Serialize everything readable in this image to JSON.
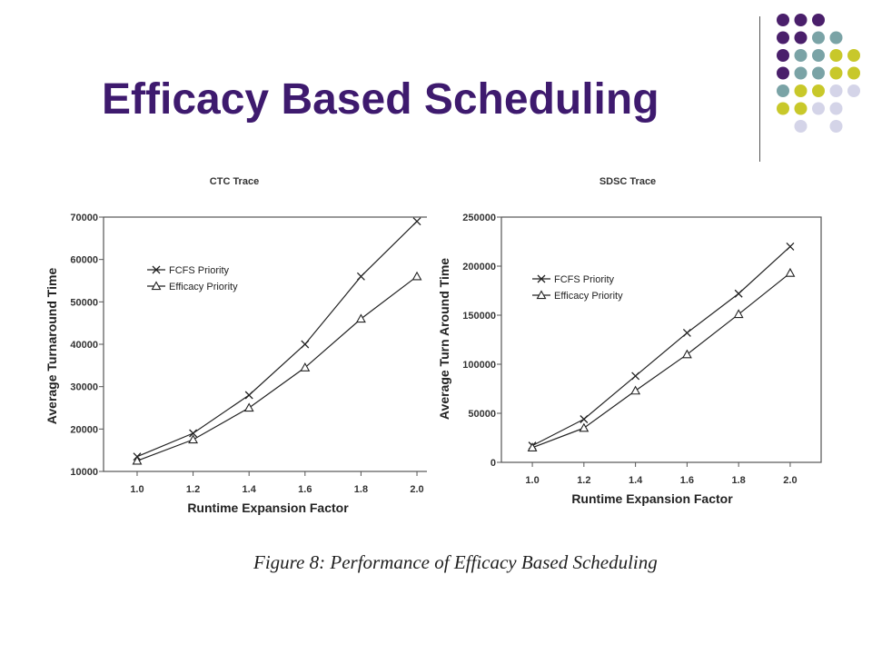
{
  "slide": {
    "title": "Efficacy Based Scheduling",
    "caption": "Figure 8: Performance of Efficacy Based Scheduling",
    "colors": {
      "title": "#3e1a6e",
      "dark_purple": "#4a1f6b",
      "teal": "#7aa3a6",
      "olive": "#c8c82a",
      "lavender": "#d4d4e8"
    },
    "decor_dots": [
      [
        "dark_purple",
        "dark_purple",
        "dark_purple",
        "",
        ""
      ],
      [
        "dark_purple",
        "dark_purple",
        "teal",
        "teal",
        ""
      ],
      [
        "dark_purple",
        "teal",
        "teal",
        "olive",
        "olive"
      ],
      [
        "dark_purple",
        "teal",
        "teal",
        "olive",
        "olive"
      ],
      [
        "teal",
        "olive",
        "olive",
        "lavender",
        "lavender"
      ],
      [
        "olive",
        "olive",
        "lavender",
        "lavender",
        ""
      ],
      [
        "",
        "lavender",
        "",
        "lavender",
        ""
      ]
    ]
  },
  "chart_data": [
    {
      "type": "line",
      "title": "CTC Trace",
      "xlabel": "Runtime Expansion Factor",
      "ylabel": "Average Turnaround Time",
      "categories": [
        "1.0",
        "1.2",
        "1.4",
        "1.6",
        "1.8",
        "2.0"
      ],
      "yticks": [
        "10000",
        "20000",
        "30000",
        "40000",
        "50000",
        "60000",
        "70000"
      ],
      "ylim": [
        10000,
        70000
      ],
      "series": [
        {
          "name": "FCFS Priority",
          "marker": "x",
          "values": [
            13500,
            19000,
            28000,
            40000,
            56000,
            69000
          ]
        },
        {
          "name": "Efficacy Priority",
          "marker": "triangle",
          "values": [
            12500,
            17500,
            25000,
            34500,
            46000,
            56000
          ]
        }
      ],
      "legend_position": "upper-left",
      "grid": false
    },
    {
      "type": "line",
      "title": "SDSC Trace",
      "xlabel": "Runtime Expansion Factor",
      "ylabel": "Average Turn Around Time",
      "categories": [
        "1.0",
        "1.2",
        "1.4",
        "1.6",
        "1.8",
        "2.0"
      ],
      "yticks": [
        "0",
        "50000",
        "100000",
        "150000",
        "200000",
        "250000"
      ],
      "ylim": [
        0,
        250000
      ],
      "series": [
        {
          "name": "FCFS Priority",
          "marker": "x",
          "values": [
            17000,
            44000,
            88000,
            132000,
            172000,
            220000
          ]
        },
        {
          "name": "Efficacy Priority",
          "marker": "triangle",
          "values": [
            15000,
            35000,
            73000,
            110000,
            151000,
            193000
          ]
        }
      ],
      "legend_position": "upper-left",
      "grid": false
    }
  ]
}
